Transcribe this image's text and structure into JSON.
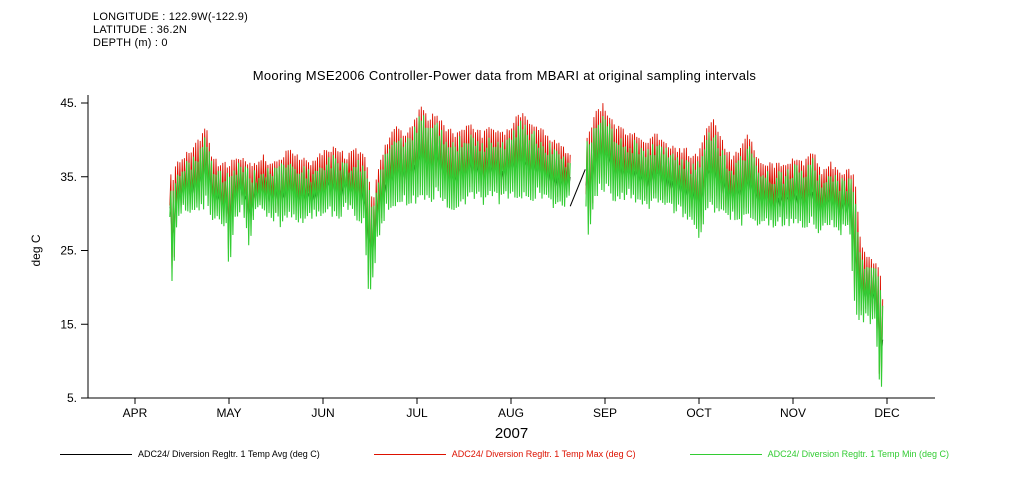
{
  "meta": {
    "longitude": "LONGITUDE : 122.9W(-122.9)",
    "latitude": "LATITUDE : 36.2N",
    "depth": "DEPTH (m) : 0"
  },
  "chart_data": {
    "type": "line",
    "title": "Mooring MSE2006 Controller-Power data from MBARI at original sampling intervals",
    "ylabel": "deg C",
    "xlabel": "2007",
    "ylim": [
      5,
      45
    ],
    "yticks": [
      5,
      15,
      25,
      35,
      45
    ],
    "ytick_labels": [
      "5.",
      "15.",
      "25.",
      "35.",
      "45."
    ],
    "x_categories": [
      "APR",
      "MAY",
      "JUN",
      "JUL",
      "AUG",
      "SEP",
      "OCT",
      "NOV",
      "DEC"
    ],
    "x_unit": "month tick index (APR 2007 = 0)",
    "x_range": [
      0.37,
      7.96
    ],
    "grid": false,
    "legend_position": "bottom",
    "series": [
      {
        "name": "ADC24/ Diversion Regltr. 1 Temp Avg (deg C)",
        "color": "#000000",
        "role": "avg"
      },
      {
        "name": "ADC24/ Diversion Regltr. 1 Temp Max (deg C)",
        "color": "#dd1100",
        "role": "max"
      },
      {
        "name": "ADC24/ Diversion Regltr. 1 Temp Min (deg C)",
        "color": "#33cc33",
        "role": "min"
      }
    ],
    "envelope_note": "high-frequency band read off plot: [x months, low deg C, high deg C]",
    "envelope": [
      [
        0.37,
        29,
        35
      ],
      [
        0.4,
        18,
        34
      ],
      [
        0.44,
        28,
        36
      ],
      [
        0.52,
        30,
        37
      ],
      [
        0.62,
        29,
        38
      ],
      [
        0.72,
        30,
        40
      ],
      [
        0.76,
        31,
        41
      ],
      [
        0.82,
        29,
        37
      ],
      [
        0.9,
        28,
        36
      ],
      [
        0.97,
        28,
        36
      ],
      [
        1.0,
        22,
        36
      ],
      [
        1.06,
        29,
        37
      ],
      [
        1.14,
        30,
        37
      ],
      [
        1.21,
        25,
        36
      ],
      [
        1.28,
        29,
        36
      ],
      [
        1.36,
        30,
        37
      ],
      [
        1.45,
        29,
        36
      ],
      [
        1.55,
        28,
        37
      ],
      [
        1.65,
        29,
        38
      ],
      [
        1.75,
        28,
        37
      ],
      [
        1.85,
        29,
        36
      ],
      [
        1.95,
        29,
        37
      ],
      [
        2.05,
        30,
        38
      ],
      [
        2.15,
        29,
        38
      ],
      [
        2.25,
        30,
        37
      ],
      [
        2.35,
        29,
        38
      ],
      [
        2.44,
        28,
        37
      ],
      [
        2.48,
        19,
        35
      ],
      [
        2.53,
        20,
        31
      ],
      [
        2.58,
        26,
        35
      ],
      [
        2.68,
        30,
        39
      ],
      [
        2.78,
        31,
        41
      ],
      [
        2.88,
        31,
        40
      ],
      [
        2.97,
        31,
        42
      ],
      [
        3.05,
        32,
        44
      ],
      [
        3.12,
        31,
        42
      ],
      [
        3.2,
        32,
        43
      ],
      [
        3.3,
        31,
        41
      ],
      [
        3.4,
        30,
        40
      ],
      [
        3.5,
        31,
        41
      ],
      [
        3.6,
        32,
        41
      ],
      [
        3.7,
        31,
        40
      ],
      [
        3.8,
        32,
        41
      ],
      [
        3.9,
        31,
        40
      ],
      [
        4.0,
        32,
        41
      ],
      [
        4.08,
        32,
        43
      ],
      [
        4.18,
        31,
        42
      ],
      [
        4.28,
        32,
        41
      ],
      [
        4.38,
        31,
        40
      ],
      [
        4.48,
        30,
        39
      ],
      [
        4.58,
        31,
        38
      ],
      [
        4.62,
        31,
        37
      ],
      [
        4.8,
        30,
        40
      ],
      [
        4.83,
        26,
        40
      ],
      [
        4.9,
        32,
        43
      ],
      [
        4.98,
        33,
        44
      ],
      [
        5.06,
        32,
        42
      ],
      [
        5.15,
        31,
        41
      ],
      [
        5.25,
        32,
        40
      ],
      [
        5.35,
        31,
        40
      ],
      [
        5.45,
        30,
        39
      ],
      [
        5.55,
        31,
        40
      ],
      [
        5.65,
        30,
        39
      ],
      [
        5.75,
        30,
        38
      ],
      [
        5.85,
        29,
        38
      ],
      [
        5.95,
        28,
        37
      ],
      [
        6.02,
        26,
        38
      ],
      [
        6.08,
        30,
        41
      ],
      [
        6.16,
        30,
        42
      ],
      [
        6.25,
        29,
        39
      ],
      [
        6.35,
        29,
        37
      ],
      [
        6.45,
        28,
        38
      ],
      [
        6.52,
        29,
        40
      ],
      [
        6.62,
        28,
        37
      ],
      [
        6.72,
        28,
        36
      ],
      [
        6.82,
        28,
        36
      ],
      [
        6.92,
        28,
        36
      ],
      [
        7.02,
        28,
        37
      ],
      [
        7.12,
        28,
        36
      ],
      [
        7.2,
        28,
        38
      ],
      [
        7.3,
        27,
        35
      ],
      [
        7.4,
        28,
        36
      ],
      [
        7.5,
        27,
        35
      ],
      [
        7.6,
        27,
        35
      ],
      [
        7.66,
        16,
        34
      ],
      [
        7.72,
        15,
        25
      ],
      [
        7.78,
        15,
        24
      ],
      [
        7.84,
        14,
        23
      ],
      [
        7.88,
        15,
        23
      ],
      [
        7.92,
        6,
        22
      ],
      [
        7.96,
        6,
        17
      ]
    ],
    "gaps": [
      [
        4.63,
        4.79
      ]
    ],
    "avg_gap_segments": [
      [
        4.63,
        31,
        4.79,
        36
      ]
    ]
  }
}
